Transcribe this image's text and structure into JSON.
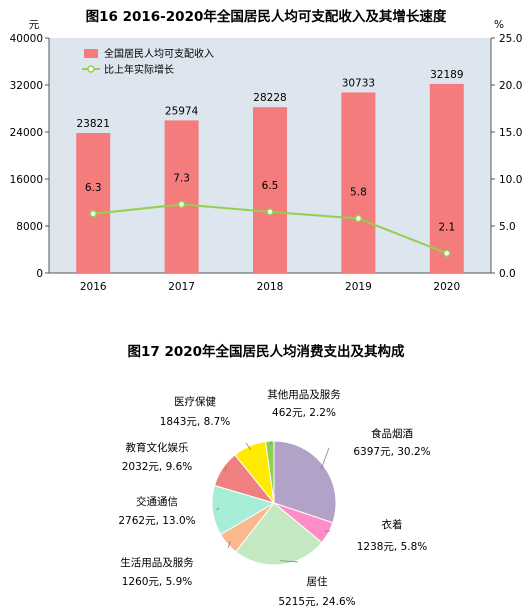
{
  "chart_data": [
    {
      "type": "bar+line",
      "title": "图16  2016-2020年全国居民人均可支配收入及其增长速度",
      "left_axis": {
        "unit": "元",
        "ylim": [
          0,
          40000
        ],
        "ticks": [
          "0",
          "8000",
          "16000",
          "24000",
          "32000",
          "40000"
        ]
      },
      "right_axis": {
        "unit": "%",
        "ylim": [
          0,
          25
        ],
        "ticks": [
          "0.0",
          "5.0",
          "10.0",
          "15.0",
          "20.0",
          "25.0"
        ]
      },
      "categories": [
        "2016",
        "2017",
        "2018",
        "2019",
        "2020"
      ],
      "series": [
        {
          "name": "全国居民人均可支配收入",
          "type": "bar",
          "axis": "left",
          "values": [
            23821,
            25974,
            28228,
            30733,
            32189
          ],
          "labels": [
            "23821",
            "25974",
            "28228",
            "30733",
            "32189"
          ],
          "color": "#f47c7c"
        },
        {
          "name": "比上年实际增长",
          "type": "line",
          "axis": "right",
          "values": [
            6.3,
            7.3,
            6.5,
            5.8,
            2.1
          ],
          "labels": [
            "6.3",
            "7.3",
            "6.5",
            "5.8",
            "2.1"
          ],
          "color": "#92d050"
        }
      ],
      "legend_position": "top-left",
      "plot_background": "#dde5ee"
    },
    {
      "type": "pie",
      "title": "图17  2020年全国居民人均消费支出及其构成",
      "slices": [
        {
          "name": "食品烟酒",
          "value": 6397,
          "share": 30.2,
          "text": "6397元, 30.2%",
          "color": "#b3a2c7"
        },
        {
          "name": "衣着",
          "value": 1238,
          "share": 5.8,
          "text": "1238元, 5.8%",
          "color": "#ff8cc6"
        },
        {
          "name": "居住",
          "value": 5215,
          "share": 24.6,
          "text": "5215元, 24.6%",
          "color": "#c4e8c2"
        },
        {
          "name": "生活用品及服务",
          "value": 1260,
          "share": 5.9,
          "text": "1260元, 5.9%",
          "color": "#f9b98f"
        },
        {
          "name": "交通通信",
          "value": 2762,
          "share": 13.0,
          "text": "2762元, 13.0%",
          "color": "#a6eed8"
        },
        {
          "name": "教育文化娱乐",
          "value": 2032,
          "share": 9.6,
          "text": "2032元, 9.6%",
          "color": "#f08080"
        },
        {
          "name": "医疗保健",
          "value": 1843,
          "share": 8.7,
          "text": "1843元, 8.7%",
          "color": "#ffeb00"
        },
        {
          "name": "其他用品及服务",
          "value": 462,
          "share": 2.2,
          "text": "462元, 2.2%",
          "color": "#8fd14f"
        }
      ]
    }
  ]
}
